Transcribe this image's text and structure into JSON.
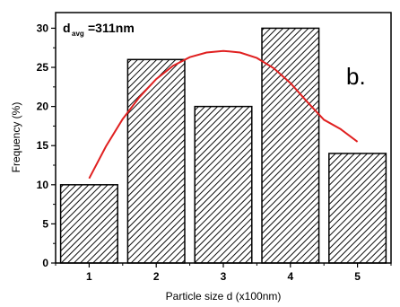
{
  "chart_data": {
    "type": "bar",
    "categories": [
      "1",
      "2",
      "3",
      "4",
      "5"
    ],
    "values": [
      10,
      26,
      20,
      30,
      14
    ],
    "xlabel": "Particle size d (x100nm)",
    "ylabel": "Frequency (%)",
    "ylim": [
      0,
      32
    ],
    "yticks": [
      0,
      5,
      10,
      15,
      20,
      25,
      30
    ],
    "panel_label": "b.",
    "annotation": {
      "prefix": "d",
      "subscript": "avg",
      "value": "=311nm"
    },
    "fit_curve": {
      "type": "gaussian-like",
      "points": [
        [
          1.0,
          10.8
        ],
        [
          1.25,
          14.9
        ],
        [
          1.5,
          18.4
        ],
        [
          1.75,
          21.2
        ],
        [
          2.0,
          23.5
        ],
        [
          2.25,
          25.2
        ],
        [
          2.5,
          26.3
        ],
        [
          2.75,
          26.9
        ],
        [
          3.0,
          27.1
        ],
        [
          3.25,
          26.9
        ],
        [
          3.5,
          26.2
        ],
        [
          3.75,
          24.9
        ],
        [
          4.0,
          23.0
        ],
        [
          4.25,
          20.6
        ],
        [
          4.5,
          18.3
        ],
        [
          4.75,
          17.1
        ],
        [
          5.0,
          15.5
        ]
      ],
      "color": "#e02020"
    },
    "bar_fill": "hatched",
    "grid": false,
    "legend": "none"
  }
}
